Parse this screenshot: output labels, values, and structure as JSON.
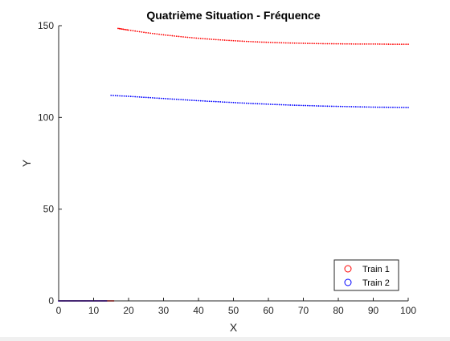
{
  "chart_data": {
    "type": "scatter",
    "title": "Quatrième Situation - Fréquence",
    "xlabel": "X",
    "ylabel": "Y",
    "xlim": [
      0,
      100
    ],
    "ylim": [
      0,
      150
    ],
    "xticks": [
      0,
      10,
      20,
      30,
      40,
      50,
      60,
      70,
      80,
      90,
      100
    ],
    "yticks": [
      0,
      50,
      100,
      150
    ],
    "grid": false,
    "legend_location": "bottom-right",
    "series": [
      {
        "name": "Train 1",
        "color": "#ff0000",
        "marker": "circle",
        "points": [
          [
            0,
            0
          ],
          [
            2,
            0
          ],
          [
            4,
            0
          ],
          [
            6,
            0
          ],
          [
            8,
            0
          ],
          [
            10,
            0
          ],
          [
            12,
            0
          ],
          [
            14,
            0
          ],
          [
            16,
            0
          ],
          [
            17,
            148.5
          ],
          [
            20,
            147.6
          ],
          [
            25,
            146.2
          ],
          [
            30,
            145.0
          ],
          [
            35,
            144.0
          ],
          [
            40,
            143.1
          ],
          [
            45,
            142.4
          ],
          [
            50,
            141.8
          ],
          [
            55,
            141.3
          ],
          [
            60,
            140.9
          ],
          [
            65,
            140.6
          ],
          [
            70,
            140.4
          ],
          [
            75,
            140.2
          ],
          [
            80,
            140.1
          ],
          [
            85,
            140.0
          ],
          [
            90,
            140.0
          ],
          [
            95,
            139.9
          ],
          [
            100,
            139.9
          ]
        ]
      },
      {
        "name": "Train 2",
        "color": "#0000ff",
        "marker": "circle",
        "points": [
          [
            0,
            0
          ],
          [
            2,
            0
          ],
          [
            4,
            0
          ],
          [
            6,
            0
          ],
          [
            8,
            0
          ],
          [
            10,
            0
          ],
          [
            12,
            0
          ],
          [
            14,
            0
          ],
          [
            15,
            112.0
          ],
          [
            20,
            111.5
          ],
          [
            25,
            110.9
          ],
          [
            30,
            110.3
          ],
          [
            35,
            109.7
          ],
          [
            40,
            109.1
          ],
          [
            45,
            108.6
          ],
          [
            50,
            108.1
          ],
          [
            55,
            107.6
          ],
          [
            60,
            107.2
          ],
          [
            65,
            106.8
          ],
          [
            70,
            106.5
          ],
          [
            75,
            106.2
          ],
          [
            80,
            106.0
          ],
          [
            85,
            105.8
          ],
          [
            90,
            105.6
          ],
          [
            95,
            105.5
          ],
          [
            100,
            105.4
          ]
        ]
      }
    ]
  }
}
